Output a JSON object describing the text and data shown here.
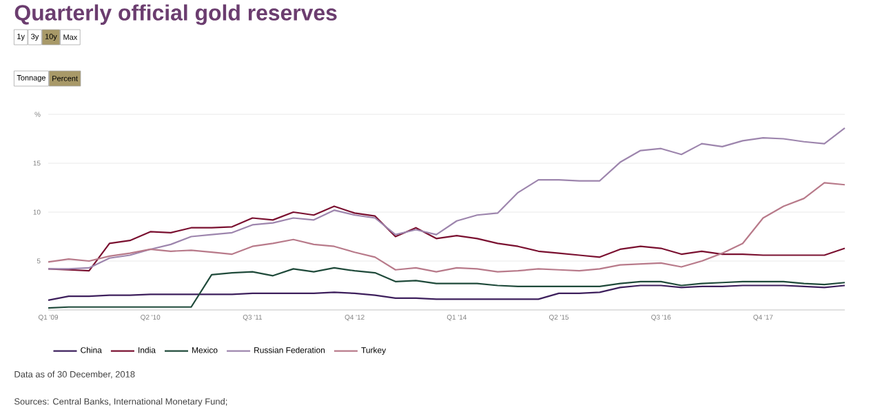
{
  "chart_data": {
    "type": "line",
    "title": "Quarterly official gold reserves",
    "annotations": [
      "1y",
      "3y",
      "10y",
      "Max",
      "Tonnage",
      "Percent",
      "Data as of 30 December, 2018",
      "Sources: Central Banks, International Monetary Fund;"
    ],
    "categories": [
      "Q1 '09",
      null,
      null,
      null,
      null,
      "Q2 '10",
      null,
      null,
      null,
      null,
      "Q3 '11",
      null,
      null,
      null,
      null,
      "Q4 '12",
      null,
      null,
      null,
      null,
      "Q1 '14",
      null,
      null,
      null,
      null,
      "Q2 '15",
      null,
      null,
      null,
      null,
      "Q3 '16",
      null,
      null,
      null,
      null,
      "Q4 '17",
      null,
      null,
      null,
      null
    ],
    "ylim": [
      0,
      20
    ],
    "yticks": [
      5,
      10,
      15,
      {
        "value": 20,
        "label": "%"
      }
    ],
    "grid": "y",
    "legend": "bottom",
    "series": [
      {
        "name": "China",
        "color": "#3d1f5c",
        "values": [
          1.0,
          1.4,
          1.4,
          1.5,
          1.5,
          1.6,
          1.6,
          1.6,
          1.6,
          1.6,
          1.7,
          1.7,
          1.7,
          1.7,
          1.8,
          1.7,
          1.5,
          1.2,
          1.2,
          1.1,
          1.1,
          1.1,
          1.1,
          1.1,
          1.1,
          1.7,
          1.7,
          1.8,
          2.3,
          2.5,
          2.5,
          2.3,
          2.4,
          2.4,
          2.5,
          2.5,
          2.5,
          2.4,
          2.3,
          2.5
        ]
      },
      {
        "name": "India",
        "color": "#7a1030",
        "values": [
          4.2,
          4.1,
          4.0,
          6.8,
          7.1,
          8.0,
          7.9,
          8.4,
          8.4,
          8.5,
          9.4,
          9.2,
          10.0,
          9.7,
          10.6,
          9.9,
          9.6,
          7.5,
          8.4,
          7.3,
          7.6,
          7.3,
          6.8,
          6.5,
          6.0,
          5.8,
          5.6,
          5.4,
          6.2,
          6.5,
          6.3,
          5.7,
          6.0,
          5.7,
          5.7,
          5.6,
          5.6,
          5.6,
          5.6,
          6.3
        ]
      },
      {
        "name": "Mexico",
        "color": "#1f4a3a",
        "values": [
          0.2,
          0.3,
          0.3,
          0.3,
          0.3,
          0.3,
          0.3,
          0.3,
          3.6,
          3.8,
          3.9,
          3.5,
          4.2,
          3.9,
          4.3,
          4.0,
          3.8,
          2.9,
          3.0,
          2.7,
          2.7,
          2.7,
          2.5,
          2.4,
          2.4,
          2.4,
          2.4,
          2.4,
          2.7,
          2.9,
          2.9,
          2.5,
          2.7,
          2.8,
          2.9,
          2.9,
          2.9,
          2.7,
          2.6,
          2.8
        ]
      },
      {
        "name": "Russian Federation",
        "color": "#9d85ad",
        "values": [
          4.2,
          4.2,
          4.3,
          5.3,
          5.6,
          6.2,
          6.7,
          7.5,
          7.7,
          7.9,
          8.7,
          8.9,
          9.4,
          9.2,
          10.2,
          9.7,
          9.4,
          7.7,
          8.2,
          7.7,
          9.1,
          9.7,
          9.9,
          12.0,
          13.3,
          13.3,
          13.2,
          13.2,
          15.1,
          16.3,
          16.5,
          15.9,
          17.0,
          16.7,
          17.3,
          17.6,
          17.5,
          17.2,
          17.0,
          18.6
        ]
      },
      {
        "name": "Turkey",
        "color": "#b87a8a",
        "values": [
          4.9,
          5.2,
          5.0,
          5.5,
          5.8,
          6.2,
          6.0,
          6.1,
          5.9,
          5.7,
          6.5,
          6.8,
          7.2,
          6.7,
          6.5,
          5.9,
          5.4,
          4.1,
          4.3,
          3.9,
          4.3,
          4.2,
          3.9,
          4.0,
          4.2,
          4.1,
          4.0,
          4.2,
          4.6,
          4.7,
          4.8,
          4.4,
          5.0,
          5.8,
          6.8,
          9.4,
          10.6,
          11.4,
          13.0,
          12.8
        ]
      }
    ]
  }
}
